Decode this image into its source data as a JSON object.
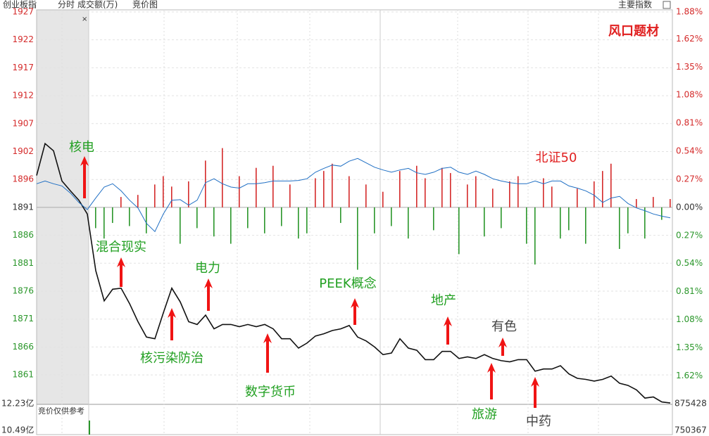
{
  "header": {
    "items": [
      "创业板指",
      "分时",
      "成交额(万)",
      "竞价图"
    ],
    "right": "主要指数"
  },
  "volume_panel": {
    "note": "竞价仅供参考",
    "left_labels": [
      "12.23亿",
      "10.49亿"
    ],
    "right_labels": [
      "875428",
      "750367"
    ]
  },
  "chart_data": {
    "type": "line",
    "ylim": [
      1855.56,
      1927.34
    ],
    "yticks": [
      {
        "value": 1926.96,
        "label": "1927"
      },
      {
        "value": 1921.88,
        "label": "1922"
      },
      {
        "value": 1916.8,
        "label": "1917"
      },
      {
        "value": 1911.72,
        "label": "1912"
      },
      {
        "value": 1906.64,
        "label": "1907"
      },
      {
        "value": 1901.56,
        "label": "1902"
      },
      {
        "value": 1896.48,
        "label": "1896"
      },
      {
        "value": 1891.4,
        "label": "1891"
      },
      {
        "value": 1886.32,
        "label": "1886"
      },
      {
        "value": 1881.24,
        "label": "1881"
      },
      {
        "value": 1876.16,
        "label": "1876"
      },
      {
        "value": 1871.08,
        "label": "1871"
      },
      1866,
      {
        "value": 1860.92,
        "label": "1861"
      }
    ],
    "y2lim": [
      -1.895,
      1.9
    ],
    "y2ticks": [
      {
        "value": 1.88,
        "label": "1.88%"
      },
      {
        "value": 1.62,
        "label": "1.62%"
      },
      {
        "value": 1.35,
        "label": "1.35%"
      },
      {
        "value": 1.08,
        "label": "1.08%"
      },
      {
        "value": 0.81,
        "label": "0.81%"
      },
      {
        "value": 0.54,
        "label": "0.54%"
      },
      {
        "value": 0.27,
        "label": "0.27%"
      },
      {
        "value": 0,
        "label": "0.00%"
      },
      {
        "value": -0.27,
        "label": "0.27%"
      },
      {
        "value": -0.54,
        "label": "0.54%"
      },
      {
        "value": -0.81,
        "label": "0.81%"
      },
      {
        "value": -1.08,
        "label": "1.08%"
      },
      {
        "value": -1.35,
        "label": "1.35%"
      },
      {
        "value": -1.62,
        "label": "1.62%"
      }
    ],
    "up_color": "#d42a2a",
    "flat_color": "#333333",
    "down_color": "#2a962a",
    "series": [
      {
        "color": "#111111",
        "values": [
          1897.2,
          1903.0,
          1901.7,
          1896.2,
          1894.4,
          1892.7,
          1890.2,
          1879.9,
          1874.4,
          1876.5,
          1876.7,
          1873.9,
          1870.6,
          1867.8,
          1867.5,
          1872.2,
          1876.7,
          1874.2,
          1870.6,
          1870.1,
          1871.8,
          1869.3,
          1870.1,
          1870.1,
          1869.7,
          1870.1,
          1869.7,
          1870.1,
          1869.3,
          1867.5,
          1867.5,
          1865.8,
          1866.7,
          1868.0,
          1868.4,
          1869.0,
          1869.3,
          1869.9,
          1867.8,
          1867.1,
          1866.0,
          1864.6,
          1864.9,
          1867.5,
          1865.8,
          1865.4,
          1863.7,
          1863.7,
          1865.2,
          1865.2,
          1863.9,
          1864.2,
          1863.9,
          1864.6,
          1863.9,
          1863.5,
          1863.3,
          1863.7,
          1863.7,
          1861.6,
          1862.0,
          1862.0,
          1862.6,
          1861.1,
          1860.3,
          1860.1,
          1859.8,
          1860.1,
          1860.7,
          1859.4,
          1859.0,
          1858.2,
          1856.7,
          1856.9,
          1856.0,
          1855.8
        ]
      },
      {
        "color": "#1f6fc4",
        "values": [
          1895.7,
          1896.2,
          1895.7,
          1895.3,
          1894.0,
          1892.3,
          1891.0,
          1893.1,
          1895.1,
          1895.7,
          1894.4,
          1892.7,
          1891.3,
          1888.5,
          1887.0,
          1890.2,
          1892.7,
          1892.8,
          1891.8,
          1892.7,
          1895.9,
          1896.6,
          1895.7,
          1895.1,
          1894.9,
          1895.7,
          1895.7,
          1895.9,
          1896.2,
          1896.2,
          1896.2,
          1896.3,
          1896.6,
          1897.8,
          1898.5,
          1899.1,
          1898.9,
          1899.8,
          1900.3,
          1899.5,
          1898.7,
          1898.2,
          1897.8,
          1898.2,
          1898.5,
          1897.7,
          1897.4,
          1897.8,
          1898.5,
          1898.7,
          1897.8,
          1897.4,
          1898.0,
          1897.4,
          1896.6,
          1896.2,
          1895.9,
          1895.7,
          1895.7,
          1896.2,
          1895.7,
          1896.2,
          1896.2,
          1895.3,
          1894.9,
          1894.4,
          1893.6,
          1892.3,
          1893.1,
          1893.4,
          1892.1,
          1891.3,
          1890.8,
          1890.2,
          1889.8,
          1889.5
        ]
      },
      {
        "type": "bar",
        "axis": "y2",
        "color": "#d42a2a",
        "negative_color": "#2a962a",
        "values": [
          null,
          null,
          null,
          null,
          null,
          null,
          null,
          -0.2,
          -0.3,
          -0.15,
          0.1,
          -0.18,
          0.12,
          -0.25,
          0.22,
          0.3,
          0.2,
          -0.35,
          0.25,
          -0.2,
          0.45,
          -0.28,
          0.57,
          -0.35,
          0.3,
          -0.2,
          0.38,
          -0.25,
          0.4,
          -0.18,
          0.22,
          -0.3,
          -0.25,
          0.28,
          0.35,
          0.42,
          -0.15,
          0.3,
          -0.6,
          0.22,
          -0.25,
          0.15,
          -0.18,
          0.35,
          -0.3,
          0.4,
          0.28,
          -0.22,
          0.38,
          0.33,
          -0.45,
          0.22,
          0.3,
          -0.28,
          0.18,
          -0.2,
          0.25,
          0.3,
          -0.35,
          -0.55,
          0.28,
          0.2,
          -0.3,
          -0.22,
          0.18,
          -0.35,
          0.25,
          0.35,
          0.42,
          -0.4,
          -0.25,
          0.08,
          -0.3,
          0.1,
          -0.12,
          0.08
        ]
      }
    ],
    "annotations": [
      {
        "text": "核电",
        "color": "#22a022"
      },
      {
        "text": "混合现实",
        "color": "#22a022"
      },
      {
        "text": "电力",
        "color": "#22a022"
      },
      {
        "text": "核污染防治",
        "color": "#22a022"
      },
      {
        "text": "数字货币",
        "color": "#22a022"
      },
      {
        "text": "PEEK概念",
        "color": "#22a022"
      },
      {
        "text": "地产",
        "color": "#22a022"
      },
      {
        "text": "有色",
        "color": "#444444"
      },
      {
        "text": "旅游",
        "color": "#22a022"
      },
      {
        "text": "中药",
        "color": "#444444"
      },
      {
        "text": "北证50",
        "color": "#e02020"
      },
      {
        "text": "风口题材",
        "color": "#e02020"
      }
    ]
  }
}
